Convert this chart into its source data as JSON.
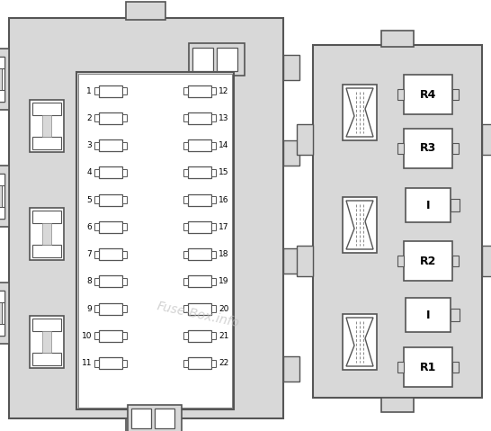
{
  "bg_color": "#ffffff",
  "box_color": "#d8d8d8",
  "outline_color": "#555555",
  "white_fill": "#ffffff",
  "text_color": "#000000",
  "watermark": "Fuse-Box.info",
  "watermark_color": "#bbbbbb",
  "col1_nums": [
    1,
    2,
    3,
    4,
    5,
    6,
    7,
    8,
    9,
    10,
    11
  ],
  "col2_nums": [
    12,
    13,
    14,
    15,
    16,
    17,
    18,
    19,
    20,
    21,
    22
  ],
  "relay_labels": [
    "R4",
    "R3",
    "I",
    "R2",
    "I",
    "R1"
  ],
  "relay_is_relay": [
    true,
    true,
    false,
    true,
    false,
    true
  ]
}
